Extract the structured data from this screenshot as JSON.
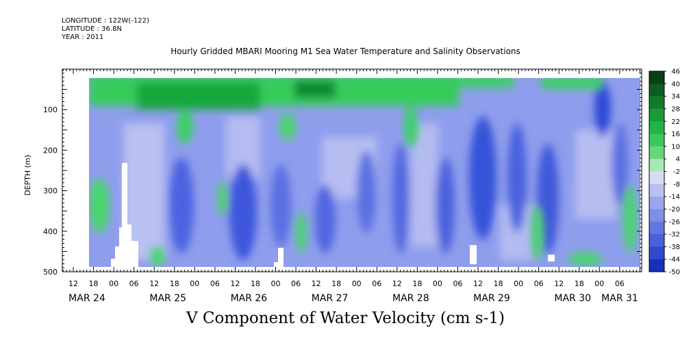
{
  "header": {
    "longitude": "LONGITUDE : 122W(-122)",
    "latitude": "LATITUDE : 36.8N",
    "year": "YEAR : 2011"
  },
  "chart_data": {
    "type": "heatmap",
    "title": "Hourly Gridded MBARI Mooring M1 Sea Water Temperature and Salinity Observations",
    "colorbar_title": "V Component of Water Velocity (cm s-1)",
    "ylabel": "DEPTH (m)",
    "y_ticks": [
      100,
      200,
      300,
      400,
      500
    ],
    "y_tick_labels": [
      "100",
      "200",
      "300",
      "400",
      "500"
    ],
    "ylim": [
      500,
      0
    ],
    "x_hour_ticks": [
      "12",
      "18",
      "00",
      "06",
      "12",
      "18",
      "00",
      "06",
      "12",
      "18",
      "00",
      "06",
      "12",
      "18",
      "00",
      "06",
      "12",
      "18",
      "00",
      "06",
      "12",
      "18",
      "00",
      "06",
      "12",
      "18",
      "00",
      "06"
    ],
    "x_date_labels": [
      "MAR 24",
      "MAR 25",
      "MAR 26",
      "MAR 27",
      "MAR 28",
      "MAR 29",
      "MAR 30",
      "MAR 31"
    ],
    "colorbar_levels": [
      46,
      40,
      34,
      28,
      22,
      16,
      10,
      4,
      -2,
      -8,
      -14,
      -20,
      -26,
      -32,
      -38,
      -44,
      -50
    ],
    "colorbar_labels": [
      "46",
      "40",
      "34",
      "28",
      "22",
      "16",
      "10",
      "4",
      "-2",
      "-8",
      "-14",
      "-20",
      "-26",
      "-32",
      "-38",
      "-44",
      "-50"
    ],
    "colors": {
      "strong_positive": "#0a4a1a",
      "positive": "#22c44a",
      "near_zero": "#cfd3f0",
      "negative": "#7f8fe6",
      "strong_negative": "#1b34c8"
    }
  }
}
